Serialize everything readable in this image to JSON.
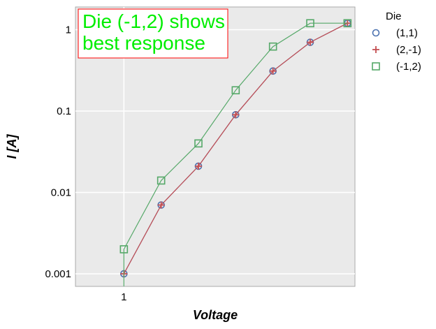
{
  "chart_data": {
    "type": "line",
    "xlabel": "Voltage",
    "ylabel": "I [A]",
    "y_scale": "log",
    "ylim": [
      0.0007,
      1.9
    ],
    "xlim": [
      -0.3,
      7.2
    ],
    "x_tick_labels": [
      "1"
    ],
    "y_tick_labels": [
      "0.001",
      "0.01",
      "0.1",
      "1"
    ],
    "grid": true,
    "legend": {
      "title": "Die",
      "placement": "outside-top-right"
    },
    "annotation": {
      "lines": [
        "Die (-1,2) shows",
        "best response"
      ],
      "color": "#00ee00",
      "border_color": "#ff0000"
    },
    "series": [
      {
        "name": "(1,1)",
        "marker": "circle",
        "color": "#4c72b0",
        "x": [
          1,
          2,
          3,
          4,
          5,
          6,
          7
        ],
        "y": [
          0.001,
          0.007,
          0.021,
          0.09,
          0.31,
          0.7,
          1.2
        ]
      },
      {
        "name": "(2,-1)",
        "marker": "plus",
        "color": "#c44e52",
        "x": [
          1,
          2,
          3,
          4,
          5,
          6,
          7
        ],
        "y": [
          0.001,
          0.007,
          0.021,
          0.09,
          0.31,
          0.7,
          1.2
        ]
      },
      {
        "name": "(-1,2)",
        "marker": "square",
        "color": "#55a868",
        "x": [
          1,
          1,
          2,
          3,
          4,
          5,
          6,
          7
        ],
        "y": [
          0.0007,
          0.002,
          0.014,
          0.04,
          0.18,
          0.62,
          1.2,
          1.2
        ]
      }
    ]
  }
}
